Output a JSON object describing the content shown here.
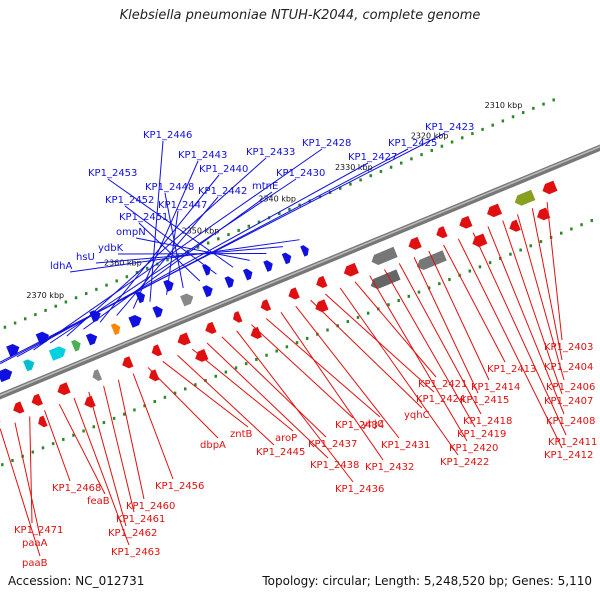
{
  "title": "Klebsiella pneumoniae NTUH-K2044, complete genome",
  "footer": {
    "accession": "Accession: NC_012731",
    "info": "Topology: circular; Length: 5,248,520 bp; Genes: 5,110"
  },
  "colors": {
    "forward_gene": "#1010e0",
    "reverse_gene": "#e01010",
    "ruler_tick": "#2a8a2a",
    "backbone": "#777777"
  },
  "ruler": [
    {
      "label": "2310 kbp"
    },
    {
      "label": "2320 kbp"
    },
    {
      "label": "2330 kbp"
    },
    {
      "label": "2340 kbp"
    },
    {
      "label": "2350 kbp"
    },
    {
      "label": "2360 kbp"
    },
    {
      "label": "2370 kbp"
    }
  ],
  "forward_labels": [
    "KP1_2423",
    "KP1_2425",
    "KP1_2427",
    "KP1_2428",
    "KP1_2430",
    "KP1_2433",
    "mtnE",
    "KP1_2440",
    "KP1_2442",
    "KP1_2443",
    "KP1_2446",
    "KP1_2447",
    "KP1_2448",
    "KP1_2451",
    "KP1_2452",
    "KP1_2453",
    "ompN",
    "ydbK",
    "hsU",
    "ldhA"
  ],
  "reverse_labels": [
    "KP1_2403",
    "KP1_2404",
    "KP1_2406",
    "KP1_2407",
    "KP1_2408",
    "KP1_2411",
    "KP1_2412",
    "KP1_2413",
    "KP1_2414",
    "KP1_2415",
    "KP1_2418",
    "KP1_2419",
    "KP1_2420",
    "KP1_2421",
    "KP1_2422",
    "KP1_2424",
    "yqhC",
    "KP1_2431",
    "KP1_2432",
    "yhjC",
    "KP1_2434",
    "KP1_2436",
    "KP1_2437",
    "KP1_2438",
    "aroP",
    "KP1_2445",
    "zntB",
    "dbpA",
    "KP1_2456",
    "KP1_2460",
    "KP1_2461",
    "KP1_2462",
    "KP1_2463",
    "feaB",
    "KP1_2468",
    "KP1_2471",
    "paaA",
    "paaB"
  ]
}
